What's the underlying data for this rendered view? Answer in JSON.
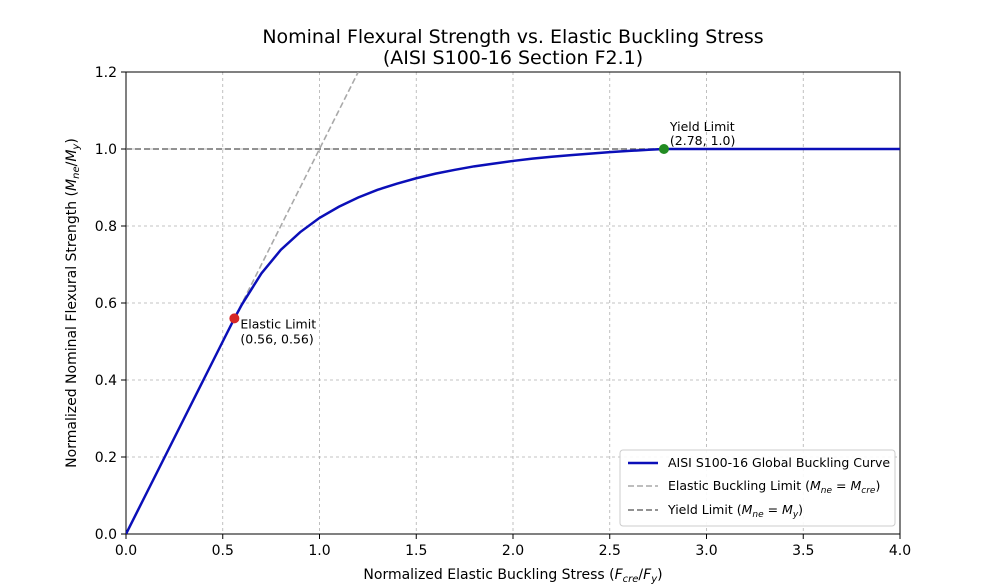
{
  "chart_data": {
    "type": "line",
    "title_line1": "Nominal Flexural Strength vs. Elastic Buckling Stress",
    "title_line2": "(AISI S100-16 Section F2.1)",
    "xlabel": {
      "prefix": "Normalized Elastic Buckling Stress (",
      "v1": "F",
      "s1": "cre",
      "sep": "/",
      "v2": "F",
      "s2": "y",
      "suffix": ")"
    },
    "ylabel": {
      "prefix": "Normalized Nominal Flexural Strength (",
      "v1": "M",
      "s1": "ne",
      "sep": "/",
      "v2": "M",
      "s2": "y",
      "suffix": ")"
    },
    "xlim": [
      0,
      4.0
    ],
    "ylim": [
      0,
      1.2
    ],
    "xticks": [
      "0.0",
      "0.5",
      "1.0",
      "1.5",
      "2.0",
      "2.5",
      "3.0",
      "3.5",
      "4.0"
    ],
    "yticks": [
      "0.0",
      "0.2",
      "0.4",
      "0.6",
      "0.8",
      "1.0",
      "1.2"
    ],
    "grid": true,
    "series": [
      {
        "name": "AISI S100-16 Global Buckling Curve",
        "color": "#0b0fb8",
        "style": "solid",
        "x": [
          0,
          0.1,
          0.2,
          0.3,
          0.4,
          0.5,
          0.56,
          0.6,
          0.7,
          0.8,
          0.9,
          1.0,
          1.1,
          1.2,
          1.3,
          1.4,
          1.5,
          1.6,
          1.7,
          1.8,
          1.9,
          2.0,
          2.1,
          2.2,
          2.3,
          2.4,
          2.5,
          2.6,
          2.7,
          2.78,
          3.0,
          3.5,
          4.0
        ],
        "y": [
          0,
          0.1,
          0.2,
          0.3,
          0.4,
          0.5,
          0.56,
          0.597,
          0.677,
          0.738,
          0.784,
          0.821,
          0.85,
          0.874,
          0.894,
          0.91,
          0.924,
          0.936,
          0.946,
          0.955,
          0.962,
          0.969,
          0.975,
          0.98,
          0.984,
          0.988,
          0.992,
          0.995,
          0.998,
          1.0,
          1.0,
          1.0,
          1.0
        ]
      },
      {
        "name_prefix": "Elastic Buckling Limit (",
        "name_v1": "M",
        "name_s1": "ne",
        "name_eq": " = ",
        "name_v2": "M",
        "name_s2": "cre",
        "name_suffix": ")",
        "color": "#a9a9a9",
        "style": "dashed",
        "x": [
          0,
          1.2
        ],
        "y": [
          0,
          1.2
        ]
      },
      {
        "name_prefix": "Yield Limit (",
        "name_v1": "M",
        "name_s1": "ne",
        "name_eq": " = ",
        "name_v2": "M",
        "name_s2": "y",
        "name_suffix": ")",
        "color": "#6e6e6e",
        "style": "dashed",
        "x": [
          0,
          2.78
        ],
        "y": [
          1.0,
          1.0
        ]
      }
    ],
    "points": [
      {
        "name": "Elastic Limit",
        "x": 0.56,
        "y": 0.56,
        "color": "#d62728",
        "label": "Elastic Limit",
        "coord_text": "(0.56, 0.56)"
      },
      {
        "name": "Yield Limit",
        "x": 2.78,
        "y": 1.0,
        "color": "#228b22",
        "label": "Yield Limit",
        "coord_text": "(2.78, 1.0)"
      }
    ],
    "legend_position": "lower-right"
  }
}
